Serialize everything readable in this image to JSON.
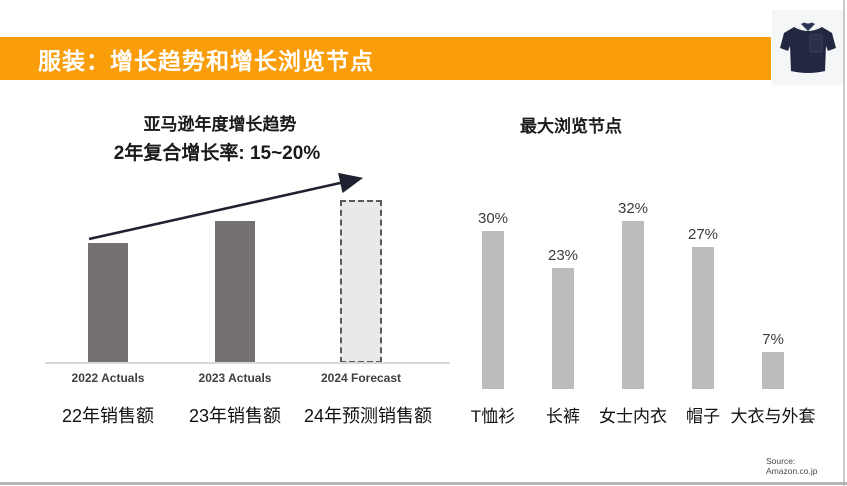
{
  "header": {
    "title": "服装：增长趋势和增长浏览节点"
  },
  "colors": {
    "accent_orange": "#FA9D0A",
    "actuals_bar": "#767171",
    "forecast_fill": "#E9E9E9",
    "forecast_border": "#595959",
    "browse_bar": "#BCBCBC",
    "arrow": "#1E2130",
    "polo_navy": "#232840"
  },
  "product_image": {
    "alt": "navy-polo-shirt"
  },
  "chart_data": [
    {
      "name": "amazon-annual-growth-trend",
      "type": "bar",
      "title": "亚马逊年度增长趋势",
      "subtitle": "2年复合增长率: 15~20%",
      "categories": [
        "2022 Actuals",
        "2023 Actuals",
        "2024 Forecast"
      ],
      "categories_cn": [
        "22年销售额",
        "23年销售额",
        "24年预测销售额"
      ],
      "values_relative": [
        100,
        118,
        136
      ],
      "forecast_index": 2,
      "annotation": "upward trend arrow",
      "value_labels_shown": false,
      "grid": false,
      "legend": false
    },
    {
      "name": "largest-browse-nodes",
      "type": "bar",
      "title": "最大浏览节点",
      "categories": [
        "T恤衫",
        "长裤",
        "女士内衣",
        "帽子",
        "大衣与外套"
      ],
      "values": [
        30,
        23,
        32,
        27,
        7
      ],
      "data_labels": [
        "30%",
        "23%",
        "32%",
        "27%",
        "7%"
      ],
      "unit": "%",
      "ylim": [
        0,
        35
      ],
      "grid": false,
      "legend": false
    }
  ],
  "source": {
    "line1": "Source:",
    "line2": "Amazon.co.jp"
  }
}
